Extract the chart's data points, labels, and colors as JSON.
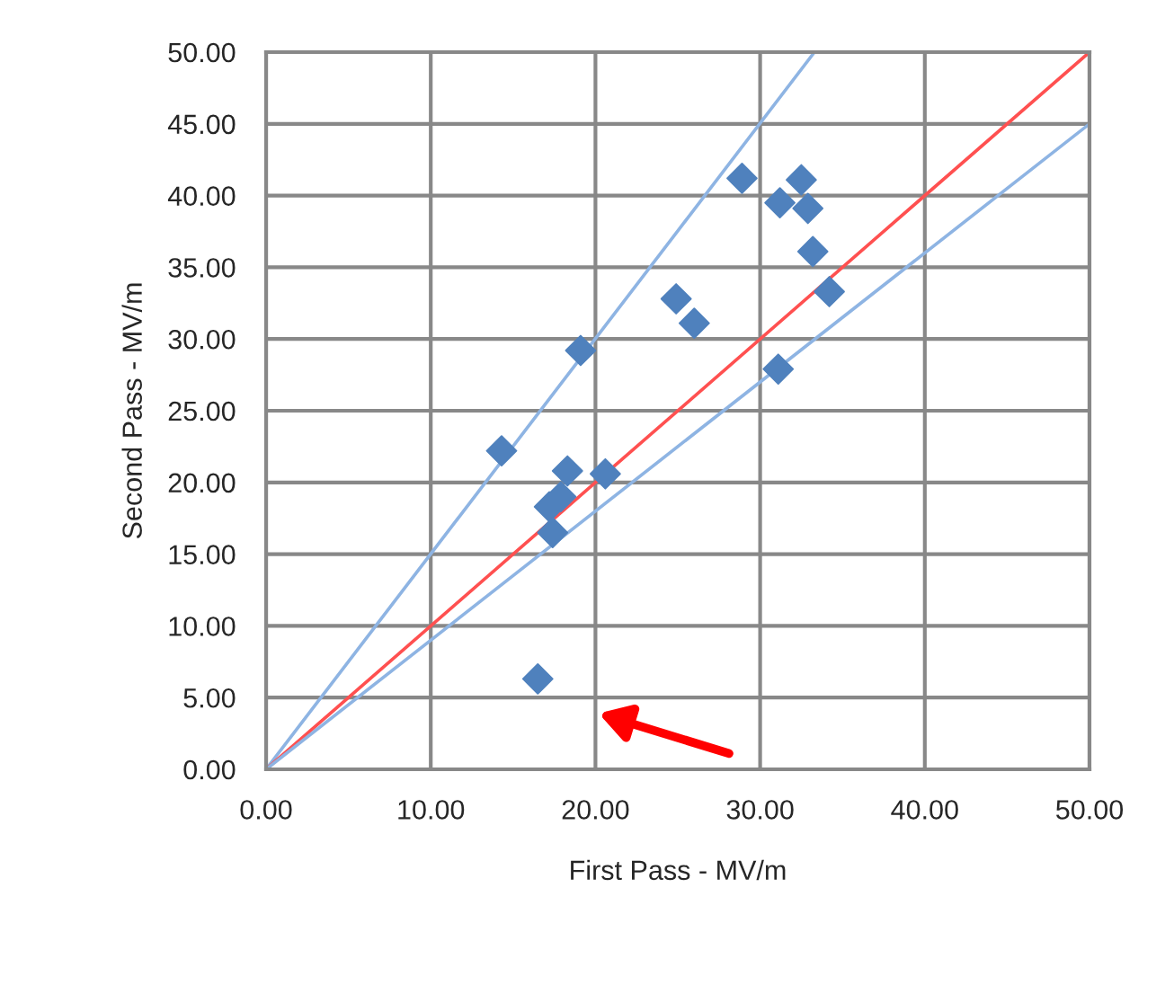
{
  "chart_data": {
    "type": "scatter",
    "xlabel": "First Pass - MV/m",
    "ylabel": "Second Pass - MV/m",
    "xlim": [
      0,
      50
    ],
    "ylim": [
      0,
      50
    ],
    "xticks": [
      {
        "value": 0,
        "label": "0.00"
      },
      {
        "value": 10,
        "label": "10.00"
      },
      {
        "value": 20,
        "label": "20.00"
      },
      {
        "value": 30,
        "label": "30.00"
      },
      {
        "value": 40,
        "label": "40.00"
      },
      {
        "value": 50,
        "label": "50.00"
      }
    ],
    "yticks": [
      {
        "value": 0,
        "label": "0.00"
      },
      {
        "value": 5,
        "label": "5.00"
      },
      {
        "value": 10,
        "label": "10.00"
      },
      {
        "value": 15,
        "label": "15.00"
      },
      {
        "value": 20,
        "label": "20.00"
      },
      {
        "value": 25,
        "label": "25.00"
      },
      {
        "value": 30,
        "label": "30.00"
      },
      {
        "value": 35,
        "label": "35.00"
      },
      {
        "value": 40,
        "label": "40.00"
      },
      {
        "value": 45,
        "label": "45.00"
      },
      {
        "value": 50,
        "label": "50.00"
      }
    ],
    "grid": true,
    "legend": false,
    "series": [
      {
        "type": "line",
        "color": "#8eb4e3",
        "marker": "none",
        "line_style": "solid",
        "x": [
          0,
          33.3
        ],
        "values": [
          0,
          50
        ]
      },
      {
        "type": "line",
        "color": "#ff5050",
        "marker": "none",
        "line_style": "solid",
        "x": [
          0,
          50
        ],
        "values": [
          0,
          50
        ]
      },
      {
        "type": "line",
        "color": "#8eb4e3",
        "marker": "none",
        "line_style": "solid",
        "x": [
          0,
          50
        ],
        "values": [
          0,
          45
        ]
      },
      {
        "color": "#4f81bd",
        "marker": "diamond",
        "x": [
          14.3,
          19.1,
          28.9,
          31.2,
          32.5,
          32.9,
          33.2,
          34.2,
          24.9,
          26.0,
          31.1,
          18.3,
          20.6,
          17.2,
          17.9,
          17.4,
          16.5
        ],
        "values": [
          22.2,
          29.2,
          41.2,
          39.5,
          41.1,
          39.1,
          36.1,
          33.3,
          32.8,
          31.1,
          27.9,
          20.8,
          20.6,
          18.3,
          19.0,
          16.5,
          6.3
        ]
      }
    ]
  }
}
